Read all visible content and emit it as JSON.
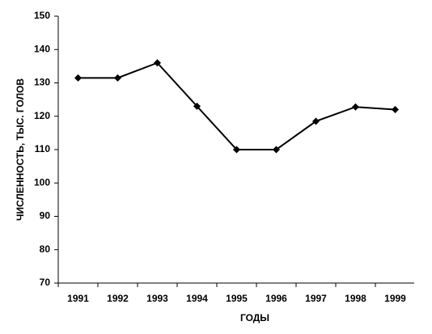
{
  "chart_data": {
    "type": "line",
    "x_label": "ГОДЫ",
    "y_label": "ЧИСЛЕННОСТЬ, ТЫС. ГОЛОВ",
    "categories": [
      "1991",
      "1992",
      "1993",
      "1994",
      "1995",
      "1996",
      "1997",
      "1998",
      "1999"
    ],
    "values": [
      131.5,
      131.5,
      136,
      123,
      110,
      110,
      118.5,
      122.8,
      122
    ],
    "color": "#000000",
    "ylim": [
      70,
      150
    ],
    "yticks": [
      70,
      80,
      90,
      100,
      110,
      120,
      130,
      140,
      150
    ],
    "grid": false
  }
}
